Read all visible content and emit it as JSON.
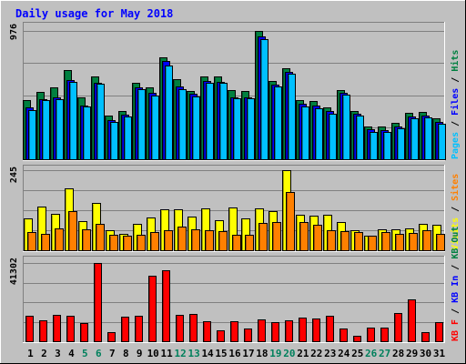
{
  "chart_data": {
    "type": "bar",
    "title": "Daily usage for May 2018",
    "categories": [
      "1",
      "2",
      "3",
      "4",
      "5",
      "6",
      "7",
      "8",
      "9",
      "10",
      "11",
      "12",
      "13",
      "14",
      "15",
      "16",
      "17",
      "18",
      "19",
      "20",
      "21",
      "22",
      "23",
      "24",
      "25",
      "26",
      "27",
      "28",
      "29",
      "30",
      "31"
    ],
    "weekend_days": [
      "5",
      "6",
      "12",
      "13",
      "19",
      "20",
      "26",
      "27"
    ],
    "panels": [
      {
        "id": "hits",
        "max_label": "976",
        "ylim": [
          0,
          976
        ],
        "right_label": [
          {
            "text": "Pages",
            "color": "#00c0ff"
          },
          {
            "text": " / ",
            "color": "#000000"
          },
          {
            "text": "Files",
            "color": "#0000ff"
          },
          {
            "text": " / ",
            "color": "#000000"
          },
          {
            "text": "Hits",
            "color": "#008040"
          }
        ],
        "series": [
          {
            "name": "Hits",
            "color": "#008040",
            "values": [
              452,
              512,
              544,
              678,
              471,
              630,
              334,
              367,
              582,
              550,
              775,
              607,
              522,
              627,
              627,
              523,
              516,
              976,
              598,
              694,
              451,
              441,
              396,
              527,
              370,
              251,
              251,
              276,
              356,
              363,
              309
            ]
          },
          {
            "name": "Files",
            "color": "#0000ff",
            "values": [
              392,
              457,
              470,
              602,
              411,
              584,
              296,
              339,
              548,
              502,
              745,
              552,
              497,
              595,
              591,
              474,
              473,
              937,
              565,
              667,
              419,
              407,
              369,
              502,
              346,
              227,
              220,
              249,
              326,
              334,
              282
            ]
          },
          {
            "name": "Pages",
            "color": "#00c0ff",
            "values": [
              373,
              448,
              459,
              591,
              400,
              575,
              282,
              324,
              530,
              485,
              712,
              534,
              481,
              582,
              578,
              463,
              462,
              915,
              552,
              653,
              400,
              386,
              349,
              488,
              331,
              207,
              205,
              233,
              312,
              316,
              272
            ]
          }
        ]
      },
      {
        "id": "visits",
        "max_label": "245",
        "ylim": [
          0,
          245
        ],
        "right_label": [
          {
            "text": "Visits",
            "color": "#ffff00"
          },
          {
            "text": " / ",
            "color": "#000000"
          },
          {
            "text": "Sites",
            "color": "#ff8000"
          }
        ],
        "series": [
          {
            "name": "Visits",
            "color": "#ffff00",
            "values": [
              98,
              135,
              110,
              190,
              89,
              145,
              62,
              49,
              81,
              99,
              124,
              125,
              104,
              129,
              92,
              130,
              97,
              127,
              120,
              245,
              108,
              105,
              108,
              87,
              61,
              45,
              65,
              64,
              68,
              80,
              78
            ]
          },
          {
            "name": "Sites",
            "color": "#ff8000",
            "values": [
              55,
              51,
              66,
              120,
              63,
              82,
              47,
              45,
              47,
              57,
              61,
              73,
              65,
              61,
              58,
              46,
              48,
              83,
              86,
              178,
              86,
              78,
              61,
              58,
              56,
              44,
              57,
              50,
              54,
              62,
              50
            ]
          }
        ]
      },
      {
        "id": "kbytes",
        "max_label": "41302",
        "ylim": [
          0,
          41302
        ],
        "right_label": [
          {
            "text": "KB F",
            "color": "#ff0000"
          },
          {
            "text": " / ",
            "color": "#000000"
          },
          {
            "text": "KB In",
            "color": "#0000ff"
          },
          {
            "text": " / ",
            "color": "#000000"
          },
          {
            "text": "KB Out",
            "color": "#008040"
          }
        ],
        "series": [
          {
            "name": "KB F",
            "color": "#ff0000",
            "values": [
              13260,
              11270,
              13890,
              13500,
              9830,
              41302,
              4680,
              13120,
              13500,
              34540,
              37560,
              13900,
              14500,
              10430,
              5910,
              10710,
              6900,
              11420,
              10140,
              11120,
              12600,
              12200,
              13390,
              6890,
              2660,
              7240,
              7330,
              14700,
              22000,
              4640,
              10170
            ]
          }
        ]
      }
    ]
  }
}
